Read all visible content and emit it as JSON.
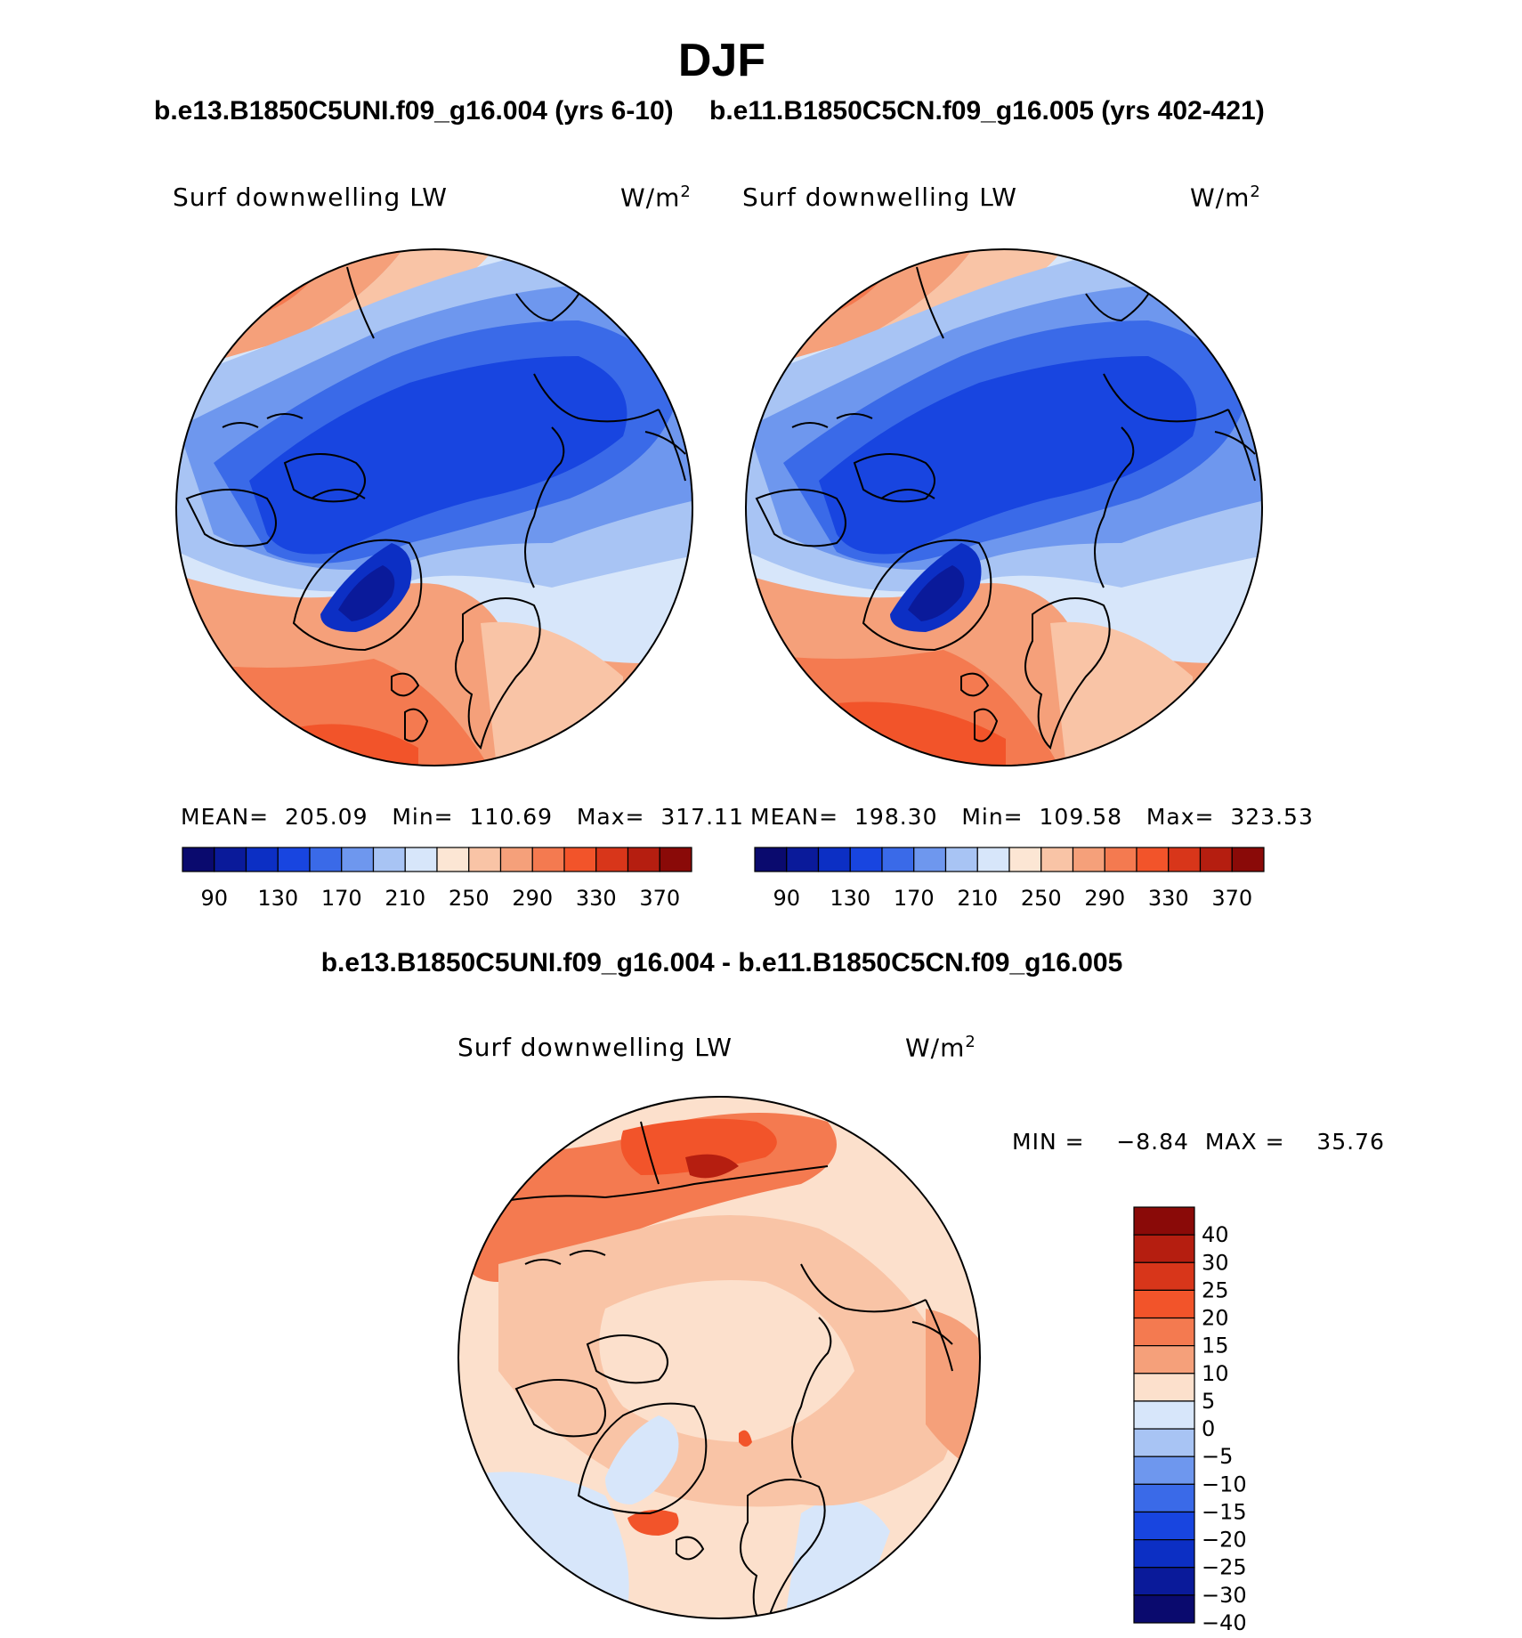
{
  "figure": {
    "season": "DJF",
    "case1_title": "b.e13.B1850C5UNI.f09_g16.004 (yrs 6-10)",
    "case2_title": "b.e11.B1850C5CN.f09_g16.005 (yrs 402-421)",
    "diff_title": "b.e13.B1850C5UNI.f09_g16.004 - b.e11.B1850C5CN.f09_g16.005"
  },
  "panels": [
    {
      "variable": "Surf downwelling LW",
      "units": "W/m",
      "units_sup": "2",
      "stats": "MEAN=  205.09   Min=  110.69   Max=  317.11"
    },
    {
      "variable": "Surf downwelling LW",
      "units": "W/m",
      "units_sup": "2",
      "stats": "MEAN=  198.30   Min=  109.58   Max=  323.53"
    },
    {
      "variable": "Surf downwelling LW",
      "units": "W/m",
      "units_sup": "2",
      "stats": "MIN =    −8.84  MAX =    35.76"
    }
  ],
  "colorbar_main": {
    "colors": [
      "#0a0a6e",
      "#0a1a9a",
      "#0c2fc4",
      "#1845e0",
      "#3a6ae8",
      "#6e97ee",
      "#a8c4f4",
      "#d7e6fa",
      "#fce6d4",
      "#f9c4a6",
      "#f5a07a",
      "#f47a50",
      "#f2542a",
      "#d8361a",
      "#b51e10",
      "#8a0a08"
    ],
    "labels": [
      "90",
      "130",
      "170",
      "210",
      "250",
      "290",
      "330",
      "370"
    ]
  },
  "colorbar_diff": {
    "colors": [
      "#8a0a08",
      "#b51e10",
      "#d8361a",
      "#f2542a",
      "#f47a50",
      "#f5a07a",
      "#fce0cc",
      "#d7e6fa",
      "#a8c4f4",
      "#6e97ee",
      "#3a6ae8",
      "#1845e0",
      "#0c2fc4",
      "#0a1a9a",
      "#0a0a6e"
    ],
    "labels": [
      "40",
      "30",
      "25",
      "20",
      "15",
      "10",
      "5",
      "0",
      "−5",
      "−10",
      "−15",
      "−20",
      "−25",
      "−30",
      "−40"
    ]
  }
}
